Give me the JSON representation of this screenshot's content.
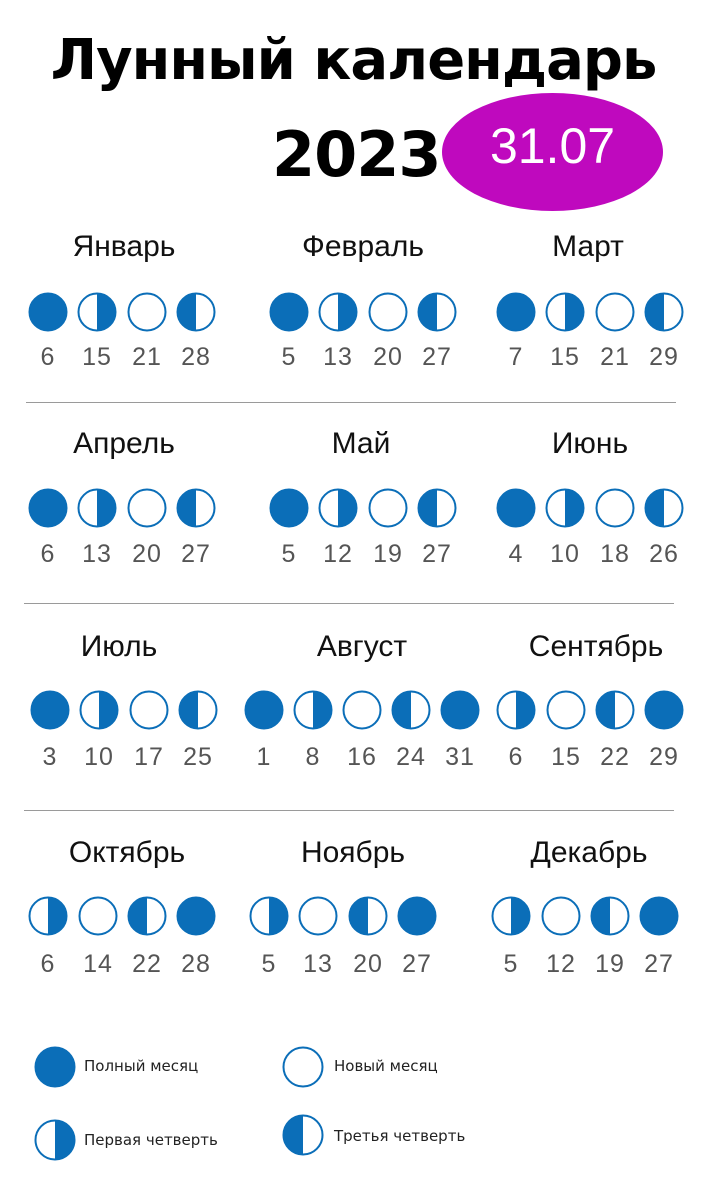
{
  "title": {
    "line1": "Лунный календарь",
    "line2": "2023"
  },
  "badge": "31.07",
  "colors": {
    "moon_blue": "#0b6eb8",
    "badge": "#bf09be"
  },
  "months": [
    {
      "name": "Январь",
      "phases": [
        {
          "phase": "full",
          "day": "6"
        },
        {
          "phase": "first",
          "day": "15"
        },
        {
          "phase": "new",
          "day": "21"
        },
        {
          "phase": "last",
          "day": "28"
        }
      ]
    },
    {
      "name": "Февраль",
      "phases": [
        {
          "phase": "full",
          "day": "5"
        },
        {
          "phase": "first",
          "day": "13"
        },
        {
          "phase": "new",
          "day": "20"
        },
        {
          "phase": "last",
          "day": "27"
        }
      ]
    },
    {
      "name": "Март",
      "phases": [
        {
          "phase": "full",
          "day": "7"
        },
        {
          "phase": "first",
          "day": "15"
        },
        {
          "phase": "new",
          "day": "21"
        },
        {
          "phase": "last",
          "day": "29"
        }
      ]
    },
    {
      "name": "Апрель",
      "phases": [
        {
          "phase": "full",
          "day": "6"
        },
        {
          "phase": "first",
          "day": "13"
        },
        {
          "phase": "new",
          "day": "20"
        },
        {
          "phase": "last",
          "day": "27"
        }
      ]
    },
    {
      "name": "Май",
      "phases": [
        {
          "phase": "full",
          "day": "5"
        },
        {
          "phase": "first",
          "day": "12"
        },
        {
          "phase": "new",
          "day": "19"
        },
        {
          "phase": "last",
          "day": "27"
        }
      ]
    },
    {
      "name": "Июнь",
      "phases": [
        {
          "phase": "full",
          "day": "4"
        },
        {
          "phase": "first",
          "day": "10"
        },
        {
          "phase": "new",
          "day": "18"
        },
        {
          "phase": "last",
          "day": "26"
        }
      ]
    },
    {
      "name": "Июль",
      "phases": [
        {
          "phase": "full",
          "day": "3"
        },
        {
          "phase": "first",
          "day": "10"
        },
        {
          "phase": "new",
          "day": "17"
        },
        {
          "phase": "last",
          "day": "25"
        }
      ]
    },
    {
      "name": "Август",
      "phases": [
        {
          "phase": "full",
          "day": "1"
        },
        {
          "phase": "first",
          "day": "8"
        },
        {
          "phase": "new",
          "day": "16"
        },
        {
          "phase": "last",
          "day": "24"
        },
        {
          "phase": "full",
          "day": "31"
        }
      ]
    },
    {
      "name": "Сентябрь",
      "phases": [
        {
          "phase": "first",
          "day": "6"
        },
        {
          "phase": "new",
          "day": "15"
        },
        {
          "phase": "last",
          "day": "22"
        },
        {
          "phase": "full",
          "day": "29"
        }
      ]
    },
    {
      "name": "Октябрь",
      "phases": [
        {
          "phase": "first",
          "day": "6"
        },
        {
          "phase": "new",
          "day": "14"
        },
        {
          "phase": "last",
          "day": "22"
        },
        {
          "phase": "full",
          "day": "28"
        }
      ]
    },
    {
      "name": "Ноябрь",
      "phases": [
        {
          "phase": "first",
          "day": "5"
        },
        {
          "phase": "new",
          "day": "13"
        },
        {
          "phase": "last",
          "day": "20"
        },
        {
          "phase": "full",
          "day": "27"
        }
      ]
    },
    {
      "name": "Декабрь",
      "phases": [
        {
          "phase": "first",
          "day": "5"
        },
        {
          "phase": "new",
          "day": "12"
        },
        {
          "phase": "last",
          "day": "19"
        },
        {
          "phase": "full",
          "day": "27"
        }
      ]
    }
  ],
  "legend": [
    {
      "phase": "full",
      "label": "Полный месяц"
    },
    {
      "phase": "new",
      "label": "Новый месяц"
    },
    {
      "phase": "first",
      "label": "Первая четверть"
    },
    {
      "phase": "last",
      "label": "Третья четверть"
    }
  ]
}
